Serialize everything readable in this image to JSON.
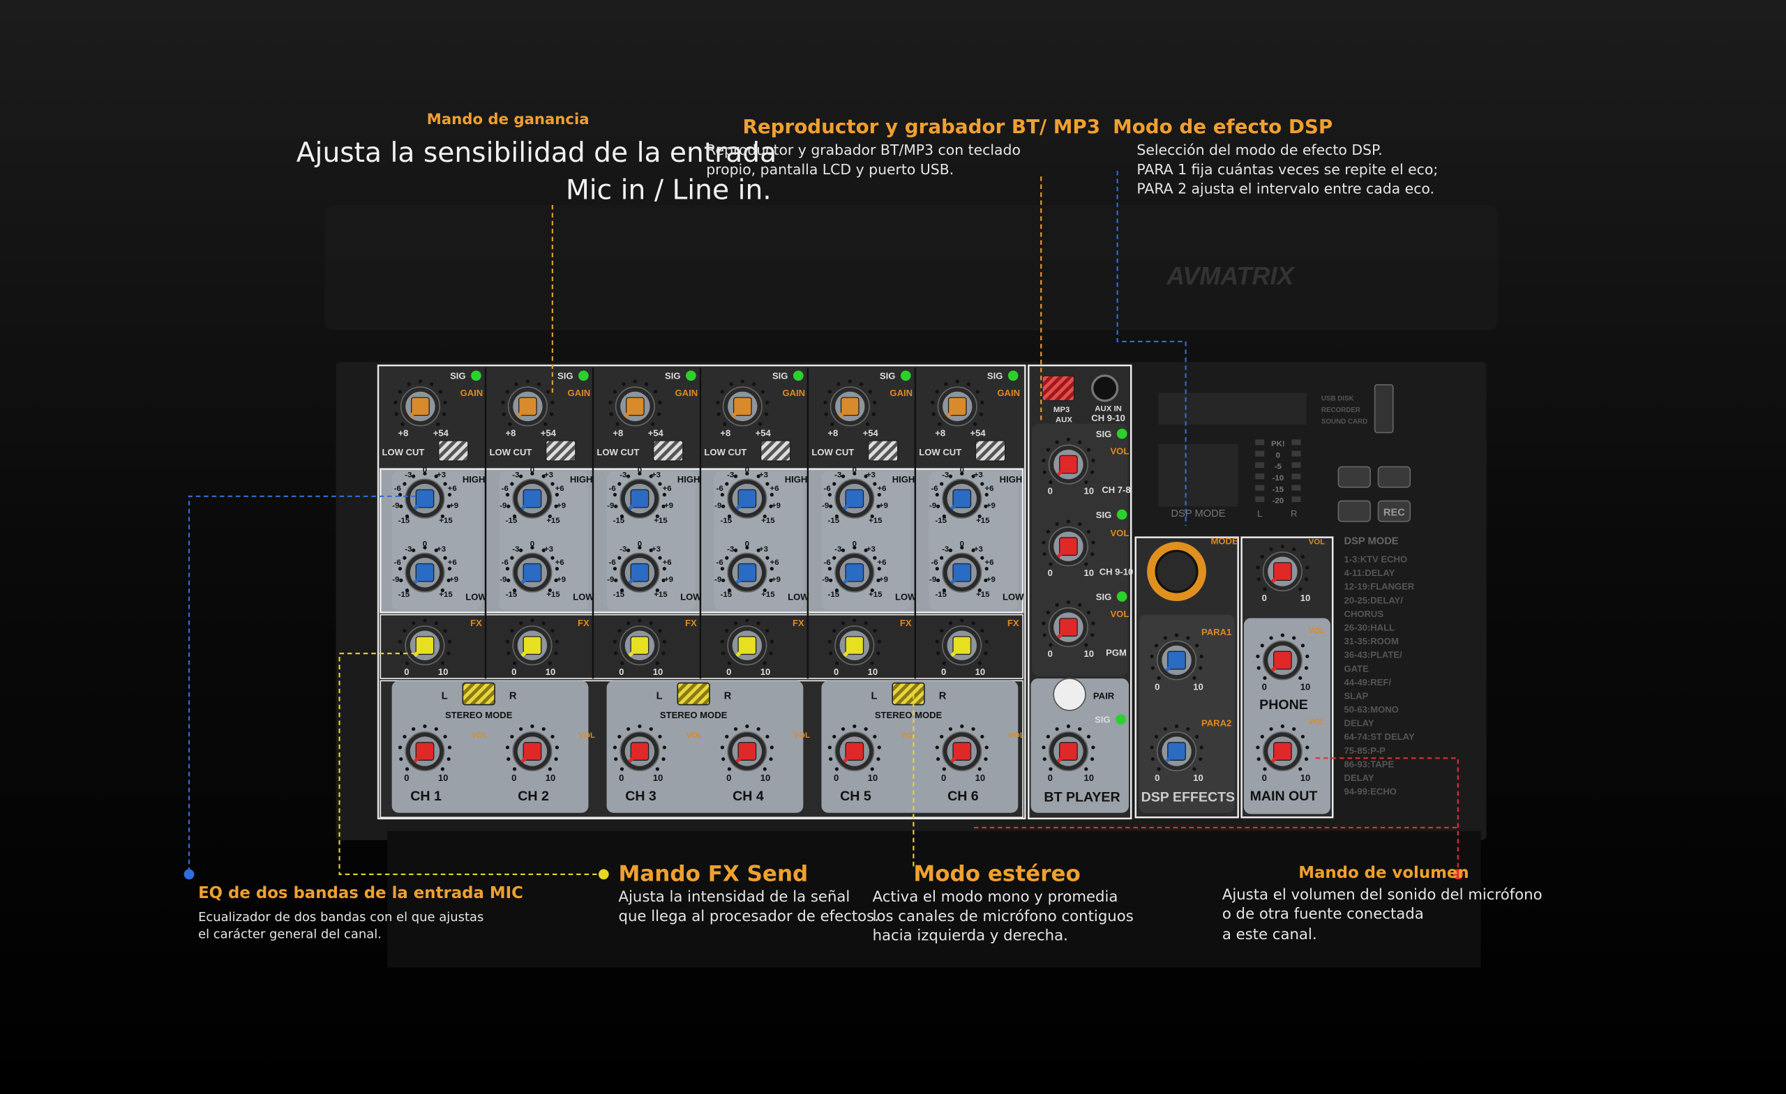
{
  "annotations": {
    "gain": {
      "title": "Mando de ganancia",
      "lines": [
        "Ajusta la sensibilidad de la entrada",
        "Mic in / Line in."
      ]
    },
    "bt": {
      "title": "Reproductor y grabador BT/ MP3",
      "lines": [
        "Reproductor y grabador BT/MP3 con teclado",
        "propio, pantalla LCD y puerto USB."
      ]
    },
    "dsp": {
      "title": "Modo de efecto DSP",
      "lines": [
        "Selección del modo de efecto DSP.",
        "PARA 1 fija cuántas veces se repite el eco;",
        "PARA 2 ajusta el intervalo entre cada eco."
      ]
    },
    "eq": {
      "title": "EQ de dos bandas de la entrada MIC",
      "lines": [
        "Ecualizador de dos bandas con el que ajustas",
        "el carácter general del canal."
      ]
    },
    "fx": {
      "title": "Mando FX Send",
      "lines": [
        "Ajusta la intensidad de la señal",
        "que llega al procesador de efectos."
      ]
    },
    "stereo": {
      "title": "Modo estéreo",
      "lines": [
        "Activa el modo mono y promedia",
        "los canales de micrófono contiguos",
        "hacia izquierda y derecha."
      ]
    },
    "volume": {
      "title": "Mando de volumen",
      "lines": [
        "Ajusta el volumen del sonido del micrófono",
        "o de otra fuente conectada",
        "a este canal."
      ]
    }
  },
  "mixer": {
    "channels": [
      "CH 1",
      "CH 2",
      "CH 3",
      "CH 4",
      "CH 5",
      "CH 6"
    ],
    "labels": {
      "sig": "SIG",
      "gain": "GAIN",
      "low_cut": "LOW CUT",
      "high": "HIGH",
      "low": "LOW",
      "fx": "FX",
      "stereo_mode": "STEREO MODE",
      "left": "L",
      "right": "R",
      "vol": "VOL",
      "pair": "PAIR",
      "mode": "MODE",
      "para1": "PARA1",
      "para2": "PARA2",
      "pgm": "PGM",
      "mp3": "MP3",
      "aux": "AUX",
      "aux_in": "AUX IN",
      "ch_7_8": "CH 7-8",
      "ch_9_10": "CH 9-10",
      "rec": "REC"
    },
    "scales": {
      "gain_min": "+8",
      "gain_max": "+54",
      "eq": [
        "-15",
        "-9",
        "-6",
        "-3",
        "0",
        "+3",
        "+6",
        "+9",
        "+15"
      ],
      "min": "0",
      "max": "10"
    },
    "sections": {
      "bt_player": "BT PLAYER",
      "dsp_effects": "DSP EFFECTS",
      "phone": "PHONE",
      "main_out": "MAIN OUT"
    },
    "brand": "AVMATRIX",
    "usb": [
      "USB DISK",
      "RECORDER",
      "SOUND CARD"
    ],
    "meter": [
      "PK!",
      "0",
      "-5",
      "-10",
      "-15",
      "-20"
    ],
    "display_label": "DSP MODE",
    "dsp_mode_title": "DSP MODE",
    "dsp_modes": [
      "1-3:KTV ECHO",
      "4-11:DELAY",
      "12-19:FLANGER",
      "20-25:DELAY/",
      "CHORUS",
      "26-30:HALL",
      "31-35:ROOM",
      "36-43:PLATE/",
      "GATE",
      "44-49:REF/",
      "SLAP",
      "50-63:MONO",
      "DELAY",
      "64-74:ST DELAY",
      "75-85:P-P",
      "86-93:TAPE",
      "DELAY",
      "94-99:ECHO"
    ]
  }
}
